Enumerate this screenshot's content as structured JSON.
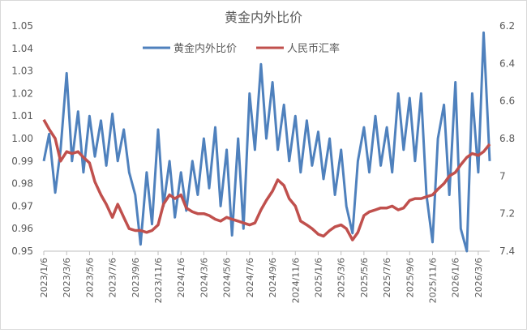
{
  "chart_data": {
    "type": "line",
    "title": "黄金内外比价",
    "legend_placement": "top",
    "grid": false,
    "xlabel": "",
    "ylabel": "",
    "y_left": {
      "range": [
        0.95,
        1.05
      ],
      "ticks": [
        "0.95",
        "0.96",
        "0.97",
        "0.98",
        "0.99",
        "1.00",
        "1.01",
        "1.02",
        "1.03",
        "1.04",
        "1.05"
      ]
    },
    "y_right": {
      "range": [
        6.2,
        7.4
      ],
      "inverted": true,
      "ticks": [
        "6.2",
        "6.4",
        "6.6",
        "6.8",
        "7",
        "7.2",
        "7.4"
      ]
    },
    "x_ticks": [
      "2023/1/6",
      "2023/3/6",
      "2023/5/6",
      "2023/7/6",
      "2023/9/6",
      "2023/11/6",
      "2024/1/6",
      "2024/3/6",
      "2024/5/6",
      "2024/7/6",
      "2024/9/6",
      "2024/11/6",
      "2025/1/6",
      "2025/3/6",
      "2025/5/6",
      "2025/7/6",
      "2025/9/6",
      "2025/11/6",
      "2026/1/6",
      "2026/3/6"
    ],
    "x": [
      "2023/1/6",
      "2023/1/20",
      "2023/2/6",
      "2023/2/20",
      "2023/3/6",
      "2023/3/20",
      "2023/4/6",
      "2023/4/20",
      "2023/5/6",
      "2023/5/20",
      "2023/6/6",
      "2023/6/20",
      "2023/7/6",
      "2023/7/20",
      "2023/8/6",
      "2023/8/20",
      "2023/9/6",
      "2023/9/20",
      "2023/10/6",
      "2023/10/20",
      "2023/11/6",
      "2023/11/20",
      "2023/12/6",
      "2023/12/20",
      "2024/1/6",
      "2024/1/20",
      "2024/2/6",
      "2024/2/20",
      "2024/3/6",
      "2024/3/20",
      "2024/4/6",
      "2024/4/20",
      "2024/5/6",
      "2024/5/20",
      "2024/6/6",
      "2024/6/20",
      "2024/7/6",
      "2024/7/20",
      "2024/8/6",
      "2024/8/20",
      "2024/9/6",
      "2024/9/20",
      "2024/10/6",
      "2024/10/20",
      "2024/11/6",
      "2024/11/20",
      "2024/12/6",
      "2024/12/20",
      "2025/1/6",
      "2025/1/20",
      "2025/2/6",
      "2025/2/20",
      "2025/3/6",
      "2025/3/20",
      "2025/4/6",
      "2025/4/20",
      "2025/5/6",
      "2025/5/20",
      "2025/6/6",
      "2025/6/20",
      "2025/7/6",
      "2025/7/20",
      "2025/8/6",
      "2025/8/20",
      "2025/9/6",
      "2025/9/20",
      "2025/10/6",
      "2025/10/20",
      "2025/11/6",
      "2025/11/20",
      "2025/12/6",
      "2025/12/20",
      "2026/1/6",
      "2026/1/20",
      "2026/2/6",
      "2026/2/20",
      "2026/3/6",
      "2026/3/20",
      "2026/4/6"
    ],
    "series": [
      {
        "name": "黄金内外比价",
        "axis": "left",
        "color": "#4F81BD",
        "values": [
          0.99,
          1.002,
          0.976,
          0.995,
          1.029,
          0.99,
          1.012,
          0.985,
          1.01,
          0.992,
          1.008,
          0.988,
          1.011,
          0.99,
          1.004,
          0.985,
          0.975,
          0.953,
          0.985,
          0.962,
          1.004,
          0.97,
          0.99,
          0.965,
          0.985,
          0.968,
          0.99,
          0.975,
          1.0,
          0.978,
          1.005,
          0.97,
          0.995,
          0.957,
          1.0,
          0.96,
          1.02,
          0.995,
          1.033,
          1.0,
          1.025,
          0.995,
          1.015,
          0.99,
          1.01,
          0.985,
          1.008,
          0.988,
          1.003,
          0.982,
          1.0,
          0.975,
          0.995,
          0.97,
          0.958,
          0.99,
          1.005,
          0.985,
          1.01,
          0.988,
          1.005,
          0.985,
          1.02,
          0.995,
          1.018,
          0.99,
          1.02,
          0.975,
          0.954,
          1.0,
          1.015,
          0.975,
          1.025,
          0.96,
          0.95,
          1.02,
          0.985,
          1.047,
          0.99
        ]
      },
      {
        "name": "人民币汇率",
        "axis": "right",
        "color": "#C0504D",
        "values": [
          6.7,
          6.75,
          6.8,
          6.92,
          6.87,
          6.88,
          6.87,
          6.9,
          6.93,
          7.03,
          7.1,
          7.15,
          7.22,
          7.15,
          7.22,
          7.28,
          7.29,
          7.29,
          7.3,
          7.29,
          7.26,
          7.15,
          7.1,
          7.12,
          7.1,
          7.17,
          7.19,
          7.2,
          7.2,
          7.21,
          7.23,
          7.24,
          7.22,
          7.23,
          7.24,
          7.25,
          7.26,
          7.25,
          7.18,
          7.13,
          7.08,
          7.02,
          7.05,
          7.12,
          7.16,
          7.24,
          7.26,
          7.28,
          7.31,
          7.32,
          7.29,
          7.27,
          7.26,
          7.28,
          7.34,
          7.3,
          7.21,
          7.19,
          7.18,
          7.17,
          7.17,
          7.16,
          7.18,
          7.17,
          7.13,
          7.12,
          7.12,
          7.11,
          7.1,
          7.07,
          7.04,
          7.0,
          6.98,
          6.94,
          6.9,
          6.88,
          6.89,
          6.87,
          6.83
        ]
      }
    ]
  }
}
